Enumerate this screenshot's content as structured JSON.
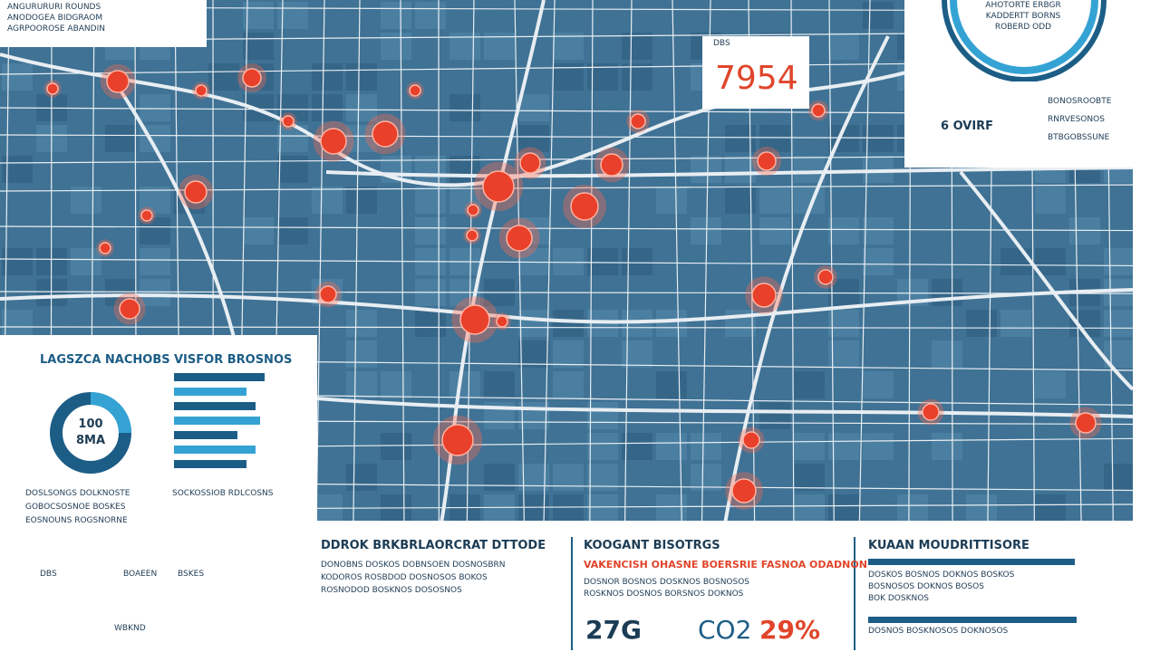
{
  "legend": {
    "lines": [
      "ANGURURURI ROUNDS",
      "ANODOGEA BIDGRAOM",
      "AGRPOOROSE ABANDIN"
    ]
  },
  "callout": {
    "label": "DBS",
    "value": "7954"
  },
  "gauge": {
    "lines": [
      "AHOTORTE ERBGR",
      "KADDERTT BORNS",
      "ROBERD ODD"
    ]
  },
  "stats": {
    "value": "6 OVIRF",
    "lines": [
      "BONOSROOBTE",
      "RNRVESONOS",
      "BTBGOBSSUNE"
    ]
  },
  "left_panel": {
    "donut": {
      "title": "LAGSZCA NACHOBS",
      "center": [
        "100",
        "8MA"
      ]
    },
    "bars": {
      "title": "VISFOR BROSNOS"
    },
    "notes": [
      "DOSLSONGS DOLKNOSTE",
      "GOBOCSOSNOE BOSKES",
      "EOSNOUNS ROGSNORNE",
      "SOCKOSSIOB RDLCOSNS"
    ],
    "footer": [
      "DBS",
      "BOAEEN",
      "BSKES",
      "WBKND"
    ]
  },
  "panels": [
    {
      "title": "DDROK BRKBRLAORCRAT DTTODE",
      "lines": [
        "DONOBNS DOSKOS DOBNSOEN DOSNOSBRN",
        "KODOROS ROSBDOD DOSNOSOS BOKOS",
        "ROSNODOD BOSKNOS DOSOSNOS"
      ]
    },
    {
      "title": "KOOGANT BISOTRGS",
      "subtitle": "VAKENCISH OHASNE BOERSRIE FASNOA ODADNON",
      "lines": [
        "DOSNOR BOSNOS DOSKNOS BOSNOSOS",
        "ROSKNOS DOSNOS BORSNOS DOKNOS"
      ],
      "figures": [
        "27G",
        "CO2",
        "29%"
      ]
    },
    {
      "title": "KUAAN MOUDRITTISORE",
      "lines": [
        "DOSKOS BOSNOS DOKNOS BOSKOS",
        "BOSNOSOS DOKNOS BOSOS",
        "BOK DOSKNOS",
        "DOSNOS BOSKNOSOS DOKNOSOS"
      ]
    }
  ]
}
